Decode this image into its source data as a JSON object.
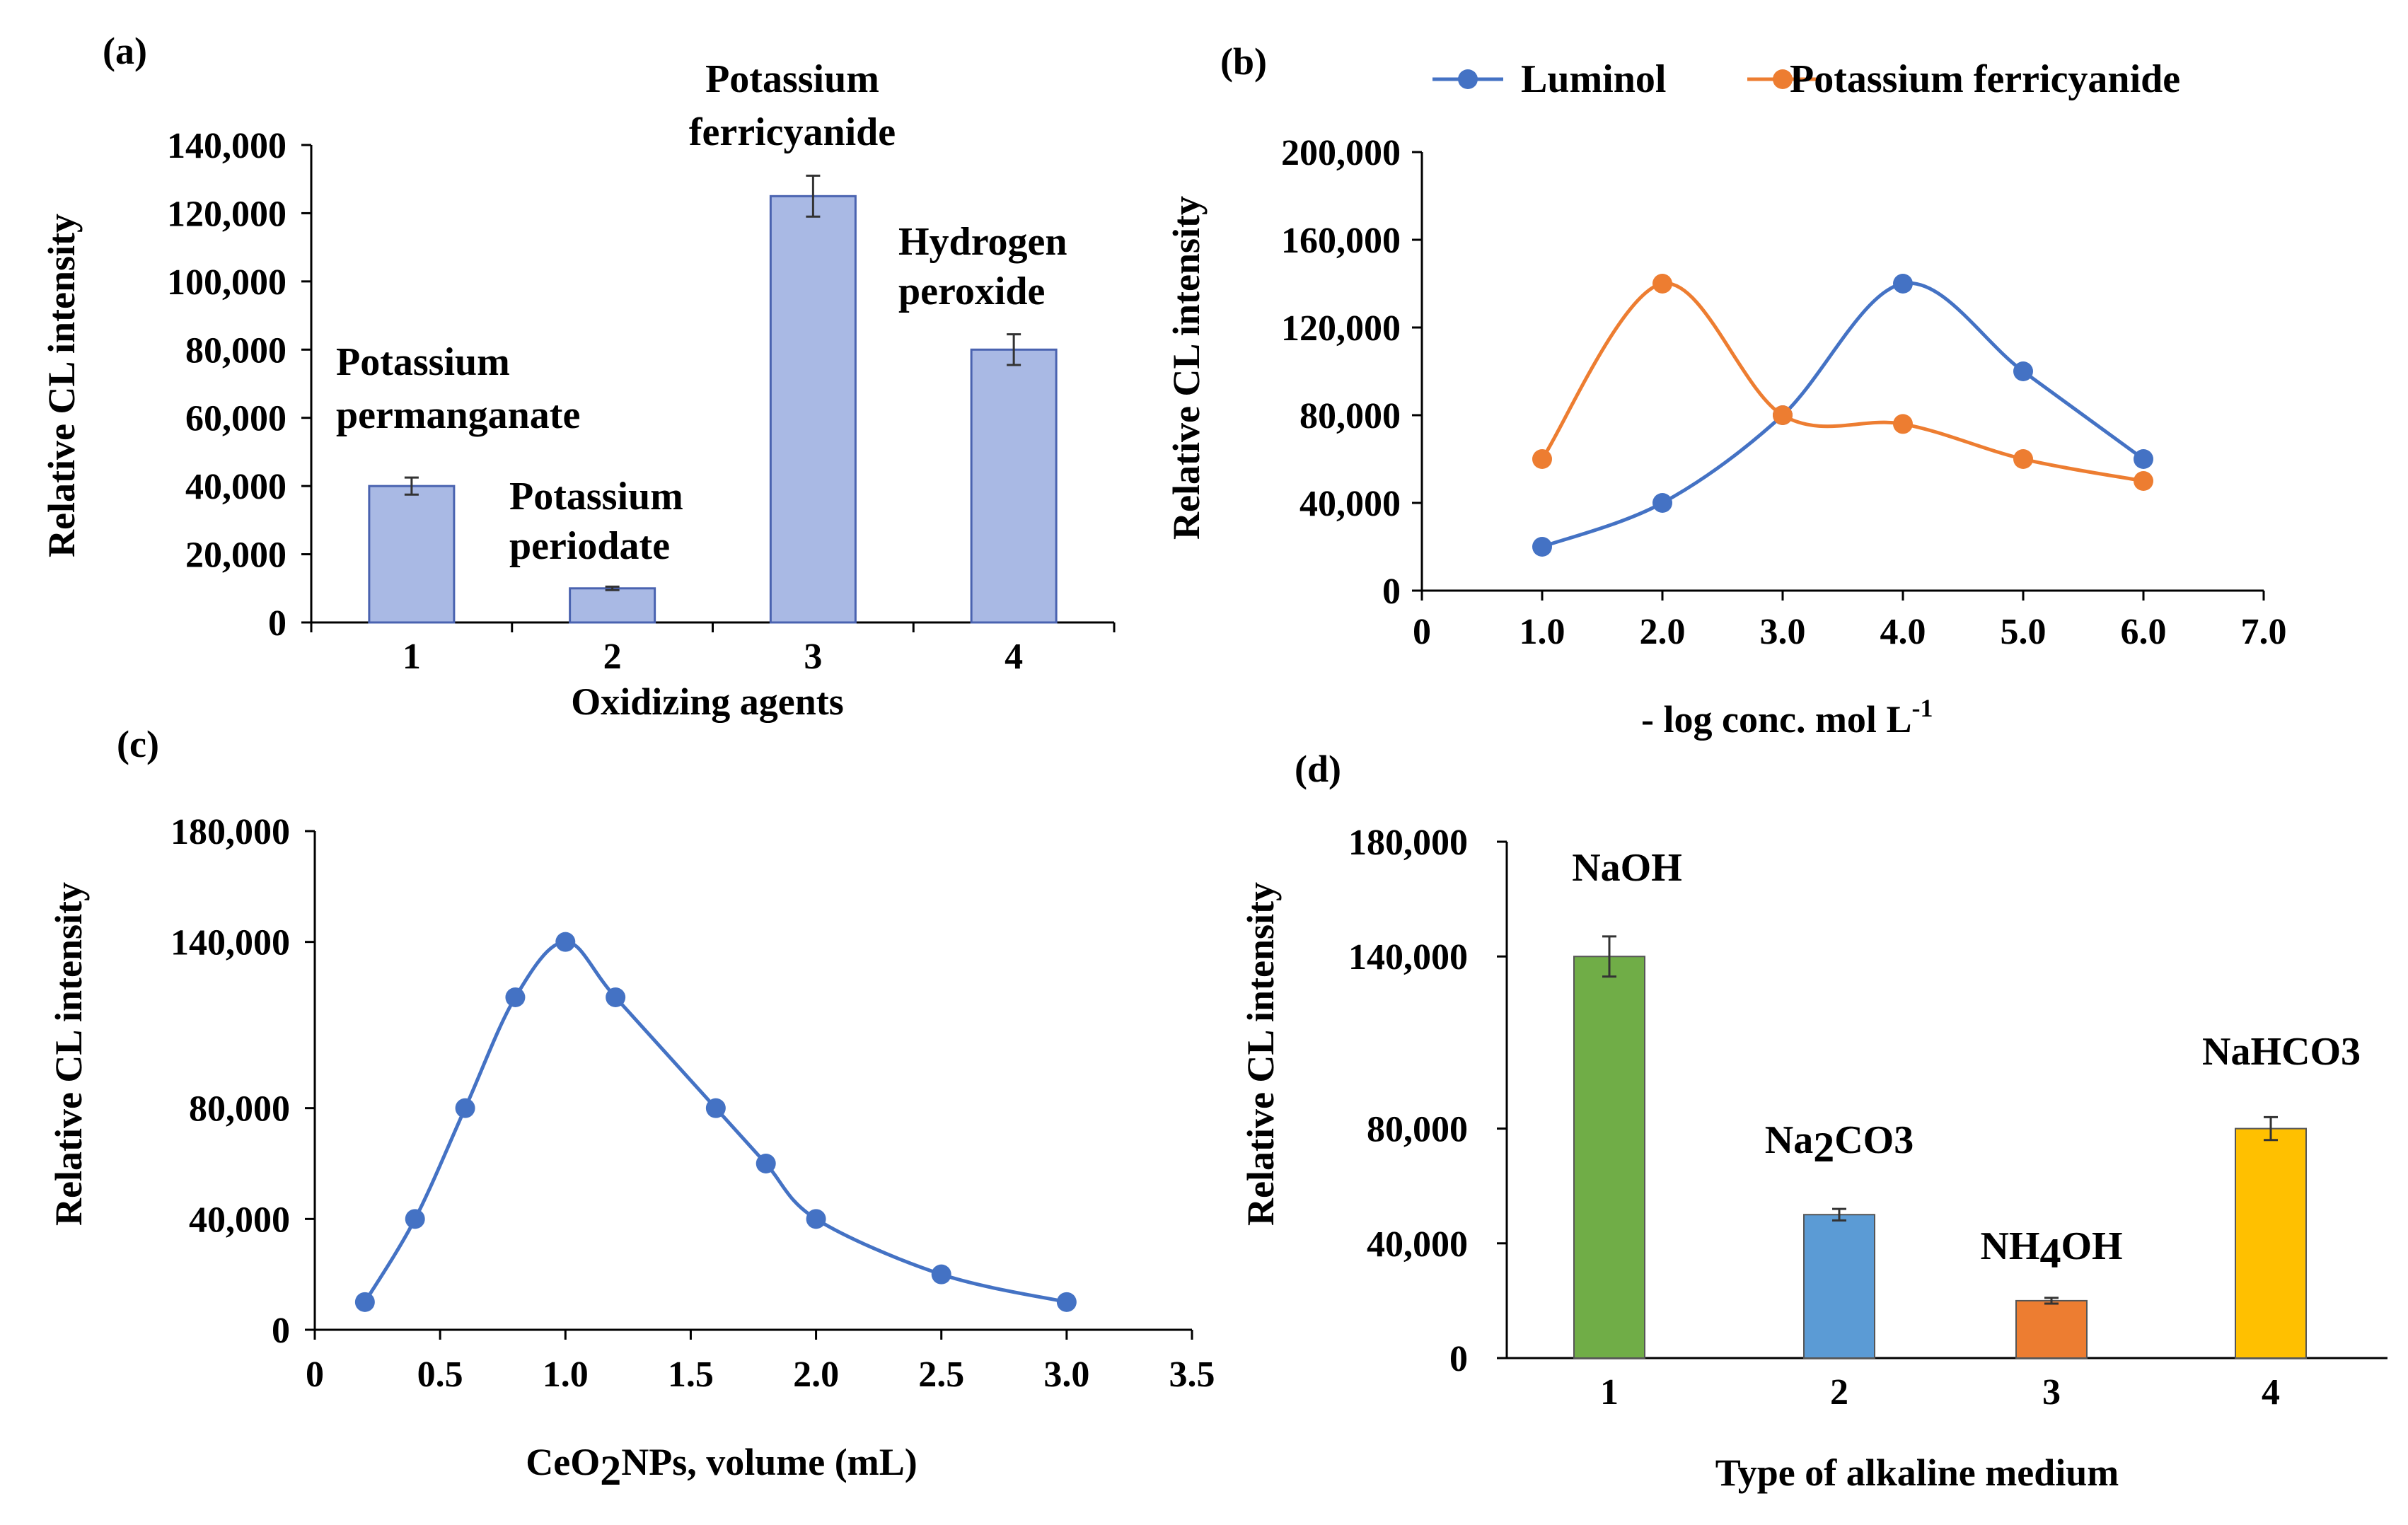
{
  "chart_data": [
    {
      "panel": "(a)",
      "type": "bar",
      "xlabel": "Oxidizing agents",
      "ylabel": "Relative CL intensity",
      "ylim": [
        0,
        140000
      ],
      "y_ticks": [
        "0",
        "20,000",
        "40,000",
        "60,000",
        "80,000",
        "100,000",
        "120,000",
        "140,000"
      ],
      "categories": [
        "1",
        "2",
        "3",
        "4"
      ],
      "values": [
        40000,
        10000,
        125000,
        80000
      ],
      "errors": [
        2500,
        500,
        6000,
        4500
      ],
      "bar_color": "#a9b9e4",
      "labels": [
        [
          "Potassium",
          "permanganate"
        ],
        [
          "Potassium",
          "periodate"
        ],
        [
          "Potassium",
          "ferricyanide"
        ],
        [
          "Hydrogen",
          "peroxide"
        ]
      ]
    },
    {
      "panel": "(b)",
      "type": "line",
      "xlabel": "- log conc. mol L",
      "xlabel_sup": "-1",
      "ylabel": "Relative CL intensity",
      "xlim": [
        0,
        7
      ],
      "ylim": [
        0,
        200000
      ],
      "x_ticks": [
        "0",
        "1.0",
        "2.0",
        "3.0",
        "4.0",
        "5.0",
        "6.0",
        "7.0"
      ],
      "y_ticks": [
        "0",
        "40,000",
        "80,000",
        "120,000",
        "160,000",
        "200,000"
      ],
      "series": [
        {
          "name": "Luminol",
          "color": "#4472c4",
          "x": [
            1,
            2,
            3,
            4,
            5,
            6
          ],
          "y": [
            20000,
            40000,
            80000,
            140000,
            100000,
            60000
          ]
        },
        {
          "name": "Potassium ferricyanide",
          "color": "#ed7d31",
          "x": [
            1,
            2,
            3,
            4,
            5,
            6
          ],
          "y": [
            60000,
            140000,
            80000,
            76000,
            60000,
            50000
          ]
        }
      ]
    },
    {
      "panel": "(c)",
      "type": "line",
      "xlabel_pre": "CeO",
      "xlabel_sub": "2",
      "xlabel_post": "NPs, volume (mL)",
      "ylabel": "Relative CL intensity",
      "xlim": [
        0,
        3.5
      ],
      "ylim": [
        0,
        180000
      ],
      "x_ticks": [
        "0",
        "0.5",
        "1.0",
        "1.5",
        "2.0",
        "2.5",
        "3.0",
        "3.5"
      ],
      "y_ticks": [
        "0",
        "40,000",
        "80,000",
        "140,000",
        "180,000"
      ],
      "series": [
        {
          "name": "CeO2NPs",
          "color": "#4472c4",
          "x": [
            0.2,
            0.4,
            0.6,
            0.8,
            1.0,
            1.2,
            1.6,
            1.8,
            2.0,
            2.5,
            3.0
          ],
          "y": [
            10000,
            40000,
            80000,
            120000,
            140000,
            120000,
            80000,
            60000,
            40000,
            20000,
            10000
          ]
        }
      ]
    },
    {
      "panel": "(d)",
      "type": "bar",
      "xlabel": "Type of alkaline medium",
      "ylabel": "Relative CL intensity",
      "ylim": [
        0,
        180000
      ],
      "y_ticks": [
        "0",
        "40,000",
        "80,000",
        "140,000",
        "180,000"
      ],
      "categories": [
        "1",
        "2",
        "3",
        "4"
      ],
      "values": [
        140000,
        50000,
        20000,
        80000
      ],
      "errors": [
        7000,
        2000,
        1000,
        4000
      ],
      "colors": [
        "#70ad47",
        "#5b9bd5",
        "#ed7d31",
        "#ffc000"
      ],
      "labels": [
        {
          "main": "NaOH",
          "sub": "",
          "tail": ""
        },
        {
          "main": "Na",
          "sub": "2",
          "tail": "CO3"
        },
        {
          "main": "NH",
          "sub": "4",
          "tail": "OH"
        },
        {
          "main": "NaHCO3",
          "sub": "",
          "tail": ""
        }
      ]
    }
  ]
}
